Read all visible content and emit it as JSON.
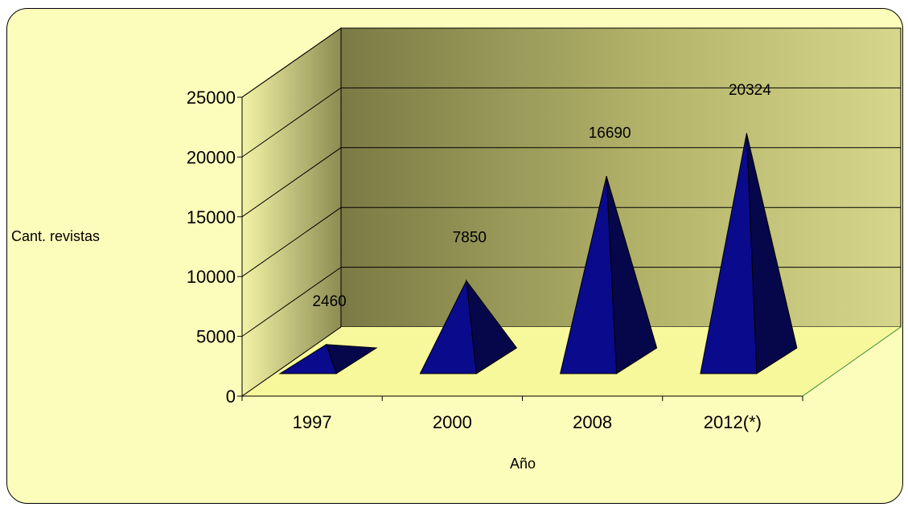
{
  "chart_data": {
    "type": "bar",
    "bar_shape": "pyramid-3d",
    "categories": [
      "1997",
      "2000",
      "2008",
      "2012(*)"
    ],
    "values": [
      2460,
      7850,
      16690,
      20324
    ],
    "data_labels": [
      "2460",
      "7850",
      "16690",
      "20324"
    ],
    "title": "",
    "xlabel": "Año",
    "ylabel": "Cant. revistas",
    "ylim": [
      0,
      25000
    ],
    "yticks": [
      "0",
      "5000",
      "10000",
      "15000",
      "20000",
      "25000"
    ],
    "grid": true,
    "legend": "none",
    "colors": {
      "plot_background": "#fdfdbb",
      "back_wall_dark": "#7c7c46",
      "back_wall_light": "#d4d48a",
      "floor": "#f7f79c",
      "pyramid_front": "#0a0a8c",
      "pyramid_side": "#06064a",
      "floor_edge": "#2e8b2e"
    }
  }
}
